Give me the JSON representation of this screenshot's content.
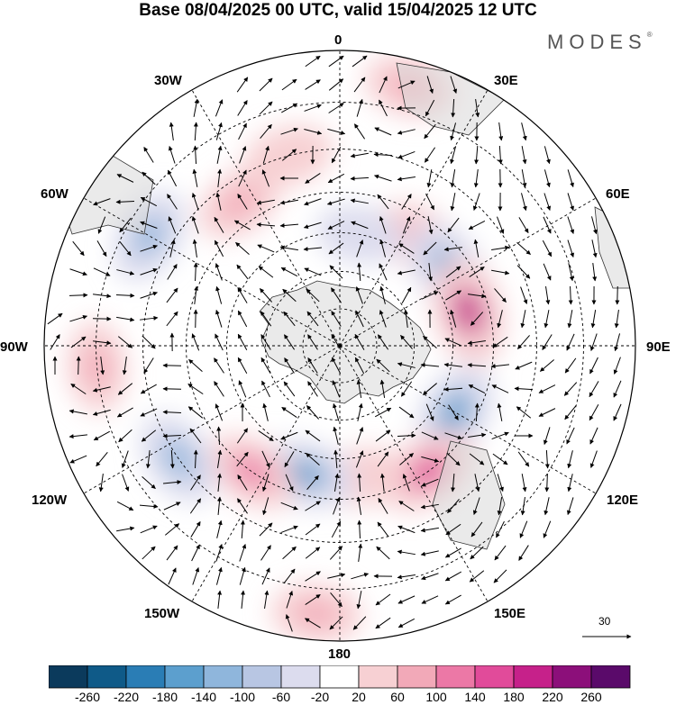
{
  "title": "Base 08/04/2025 00 UTC, valid 15/04/2025 12 UTC",
  "brand": "MODES",
  "brand_mark": "®",
  "longitude_labels": {
    "deg0": "0",
    "e30": "30E",
    "e60": "60E",
    "e90": "90E",
    "e120": "120E",
    "e150": "150E",
    "deg180": "180",
    "w150": "150W",
    "w120": "120W",
    "w90": "90W",
    "w60": "60W",
    "w30": "30W"
  },
  "projection": "south-polar-stereographic",
  "latitude_circles_deg": [
    -80,
    -70,
    -60,
    -50,
    -40,
    -30,
    -20
  ],
  "reference_vector": {
    "value": "30",
    "arrow_icon": "right-arrow-icon"
  },
  "colorbar": {
    "ticks": [
      "-260",
      "-220",
      "-180",
      "-140",
      "-100",
      "-60",
      "-20",
      "20",
      "60",
      "100",
      "140",
      "180",
      "220",
      "260"
    ],
    "colors": [
      "#0b3a5c",
      "#0f5a88",
      "#2a7db5",
      "#5c9fce",
      "#8fb6dc",
      "#b8c6e3",
      "#dcdcee",
      "#ffffff",
      "#f7d0d3",
      "#f2a9b8",
      "#ec78a6",
      "#e14b9a",
      "#c6218a",
      "#8c0f7a",
      "#5a0a6a"
    ]
  },
  "anomaly_centers": [
    {
      "lon": 15,
      "lat": -25,
      "value": 70
    },
    {
      "lon": 37,
      "lat": -55,
      "value": 90
    },
    {
      "lon": 55,
      "lat": -55,
      "value": -160
    },
    {
      "lon": 75,
      "lat": -55,
      "value": 200
    },
    {
      "lon": 120,
      "lat": -55,
      "value": -150
    },
    {
      "lon": 145,
      "lat": -50,
      "value": 160
    },
    {
      "lon": 170,
      "lat": -55,
      "value": 40
    },
    {
      "lon": -165,
      "lat": -55,
      "value": -140
    },
    {
      "lon": -175,
      "lat": -25,
      "value": 70
    },
    {
      "lon": -145,
      "lat": -50,
      "value": 110
    },
    {
      "lon": -125,
      "lat": -40,
      "value": -120
    },
    {
      "lon": -95,
      "lat": -30,
      "value": 70
    },
    {
      "lon": -60,
      "lat": -35,
      "value": -110
    },
    {
      "lon": -35,
      "lat": -45,
      "value": 70
    },
    {
      "lon": -15,
      "lat": -40,
      "value": 60
    },
    {
      "lon": 10,
      "lat": -60,
      "value": -40
    }
  ],
  "land_icon": "land-mass-icon",
  "wind_vector_icon": "wind-arrow-icon"
}
